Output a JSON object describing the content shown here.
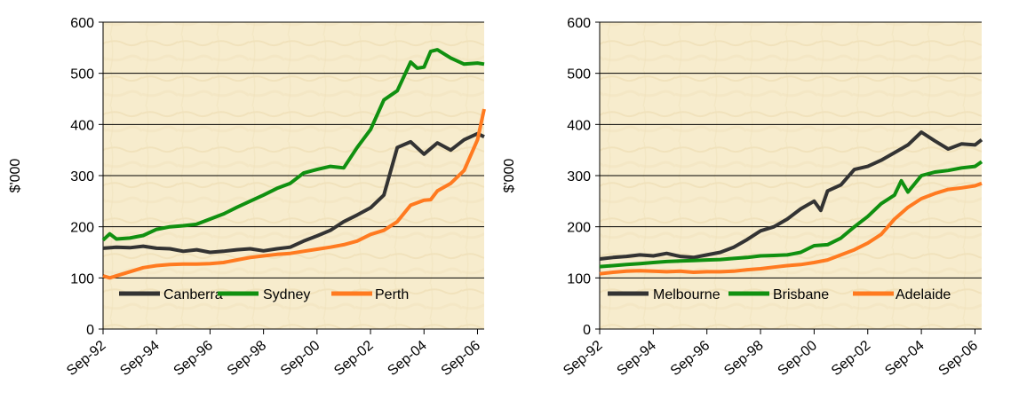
{
  "chart_data": [
    {
      "type": "line",
      "title": "",
      "xlabel": "",
      "ylabel": "$'000",
      "ylim": [
        0,
        600
      ],
      "yticks": [
        0,
        100,
        200,
        300,
        400,
        500,
        600
      ],
      "xlim": [
        "Sep-92",
        "Dec-06"
      ],
      "xtick_labels": [
        "Sep-92",
        "Sep-94",
        "Sep-96",
        "Sep-98",
        "Sep-00",
        "Sep-02",
        "Sep-04",
        "Sep-06"
      ],
      "grid": "horizontal",
      "legend_position": "bottom-inside",
      "series": [
        {
          "name": "Canberra",
          "color": "#333333",
          "points": [
            [
              "Sep-92",
              158
            ],
            [
              "Mar-93",
              160
            ],
            [
              "Sep-93",
              159
            ],
            [
              "Mar-94",
              162
            ],
            [
              "Sep-94",
              158
            ],
            [
              "Mar-95",
              157
            ],
            [
              "Sep-95",
              152
            ],
            [
              "Mar-96",
              155
            ],
            [
              "Sep-96",
              150
            ],
            [
              "Mar-97",
              152
            ],
            [
              "Sep-97",
              155
            ],
            [
              "Mar-98",
              157
            ],
            [
              "Sep-98",
              153
            ],
            [
              "Mar-99",
              157
            ],
            [
              "Sep-99",
              160
            ],
            [
              "Mar-00",
              172
            ],
            [
              "Sep-00",
              182
            ],
            [
              "Mar-01",
              193
            ],
            [
              "Sep-01",
              210
            ],
            [
              "Mar-02",
              223
            ],
            [
              "Sep-02",
              237
            ],
            [
              "Mar-03",
              262
            ],
            [
              "Sep-03",
              355
            ],
            [
              "Mar-04",
              366
            ],
            [
              "Sep-04",
              342
            ],
            [
              "Mar-05",
              364
            ],
            [
              "Sep-05",
              350
            ],
            [
              "Mar-06",
              370
            ],
            [
              "Sep-06",
              382
            ],
            [
              "Dec-06",
              376
            ]
          ]
        },
        {
          "name": "Sydney",
          "color": "#109010",
          "points": [
            [
              "Sep-92",
              174
            ],
            [
              "Dec-92",
              186
            ],
            [
              "Mar-93",
              176
            ],
            [
              "Sep-93",
              178
            ],
            [
              "Mar-94",
              183
            ],
            [
              "Sep-94",
              195
            ],
            [
              "Mar-95",
              200
            ],
            [
              "Sep-95",
              202
            ],
            [
              "Mar-96",
              205
            ],
            [
              "Sep-96",
              215
            ],
            [
              "Mar-97",
              225
            ],
            [
              "Sep-97",
              238
            ],
            [
              "Mar-98",
              250
            ],
            [
              "Sep-98",
              262
            ],
            [
              "Mar-99",
              275
            ],
            [
              "Sep-99",
              285
            ],
            [
              "Mar-00",
              305
            ],
            [
              "Sep-00",
              312
            ],
            [
              "Mar-01",
              318
            ],
            [
              "Sep-01",
              315
            ],
            [
              "Mar-02",
              355
            ],
            [
              "Sep-02",
              390
            ],
            [
              "Mar-03",
              448
            ],
            [
              "Sep-03",
              466
            ],
            [
              "Mar-04",
              522
            ],
            [
              "Jun-04",
              510
            ],
            [
              "Sep-04",
              512
            ],
            [
              "Dec-04",
              543
            ],
            [
              "Mar-05",
              546
            ],
            [
              "Sep-05",
              530
            ],
            [
              "Mar-06",
              518
            ],
            [
              "Sep-06",
              520
            ],
            [
              "Dec-06",
              518
            ]
          ]
        },
        {
          "name": "Perth",
          "color": "#FF7A20",
          "points": [
            [
              "Sep-92",
              104
            ],
            [
              "Dec-92",
              100
            ],
            [
              "Sep-93",
              112
            ],
            [
              "Mar-94",
              120
            ],
            [
              "Sep-94",
              124
            ],
            [
              "Mar-95",
              126
            ],
            [
              "Sep-95",
              127
            ],
            [
              "Mar-96",
              127
            ],
            [
              "Sep-96",
              128
            ],
            [
              "Mar-97",
              130
            ],
            [
              "Sep-97",
              135
            ],
            [
              "Mar-98",
              140
            ],
            [
              "Sep-98",
              143
            ],
            [
              "Mar-99",
              146
            ],
            [
              "Sep-99",
              148
            ],
            [
              "Mar-00",
              152
            ],
            [
              "Sep-00",
              156
            ],
            [
              "Mar-01",
              160
            ],
            [
              "Sep-01",
              165
            ],
            [
              "Mar-02",
              172
            ],
            [
              "Sep-02",
              185
            ],
            [
              "Mar-03",
              193
            ],
            [
              "Sep-03",
              210
            ],
            [
              "Mar-04",
              242
            ],
            [
              "Sep-04",
              252
            ],
            [
              "Dec-04",
              253
            ],
            [
              "Mar-05",
              270
            ],
            [
              "Sep-05",
              285
            ],
            [
              "Mar-06",
              310
            ],
            [
              "Sep-06",
              370
            ],
            [
              "Dec-06",
              430
            ]
          ]
        }
      ]
    },
    {
      "type": "line",
      "title": "",
      "xlabel": "",
      "ylabel": "$'000",
      "ylim": [
        0,
        600
      ],
      "yticks": [
        0,
        100,
        200,
        300,
        400,
        500,
        600
      ],
      "xlim": [
        "Sep-92",
        "Dec-06"
      ],
      "xtick_labels": [
        "Sep-92",
        "Sep-94",
        "Sep-96",
        "Sep-98",
        "Sep-00",
        "Sep-02",
        "Sep-04",
        "Sep-06"
      ],
      "grid": "horizontal",
      "legend_position": "bottom-inside",
      "series": [
        {
          "name": "Melbourne",
          "color": "#333333",
          "points": [
            [
              "Sep-92",
              137
            ],
            [
              "Mar-93",
              140
            ],
            [
              "Sep-93",
              142
            ],
            [
              "Mar-94",
              145
            ],
            [
              "Sep-94",
              143
            ],
            [
              "Mar-95",
              148
            ],
            [
              "Sep-95",
              142
            ],
            [
              "Mar-96",
              140
            ],
            [
              "Sep-96",
              145
            ],
            [
              "Mar-97",
              150
            ],
            [
              "Sep-97",
              160
            ],
            [
              "Mar-98",
              175
            ],
            [
              "Sep-98",
              192
            ],
            [
              "Mar-99",
              200
            ],
            [
              "Sep-99",
              215
            ],
            [
              "Mar-00",
              235
            ],
            [
              "Sep-00",
              250
            ],
            [
              "Dec-00",
              232
            ],
            [
              "Mar-01",
              270
            ],
            [
              "Sep-01",
              282
            ],
            [
              "Mar-02",
              312
            ],
            [
              "Sep-02",
              318
            ],
            [
              "Mar-03",
              330
            ],
            [
              "Sep-03",
              345
            ],
            [
              "Mar-04",
              360
            ],
            [
              "Sep-04",
              385
            ],
            [
              "Mar-05",
              368
            ],
            [
              "Sep-05",
              352
            ],
            [
              "Mar-06",
              362
            ],
            [
              "Sep-06",
              360
            ],
            [
              "Dec-06",
              370
            ]
          ]
        },
        {
          "name": "Brisbane",
          "color": "#109010",
          "points": [
            [
              "Sep-92",
              122
            ],
            [
              "Mar-93",
              124
            ],
            [
              "Sep-93",
              126
            ],
            [
              "Mar-94",
              128
            ],
            [
              "Sep-94",
              130
            ],
            [
              "Mar-95",
              132
            ],
            [
              "Sep-95",
              133
            ],
            [
              "Mar-96",
              134
            ],
            [
              "Sep-96",
              135
            ],
            [
              "Mar-97",
              136
            ],
            [
              "Sep-97",
              138
            ],
            [
              "Mar-98",
              140
            ],
            [
              "Sep-98",
              143
            ],
            [
              "Mar-99",
              144
            ],
            [
              "Sep-99",
              145
            ],
            [
              "Mar-00",
              150
            ],
            [
              "Sep-00",
              163
            ],
            [
              "Mar-01",
              165
            ],
            [
              "Sep-01",
              178
            ],
            [
              "Mar-02",
              200
            ],
            [
              "Sep-02",
              220
            ],
            [
              "Mar-03",
              245
            ],
            [
              "Sep-03",
              262
            ],
            [
              "Dec-03",
              290
            ],
            [
              "Mar-04",
              268
            ],
            [
              "Sep-04",
              300
            ],
            [
              "Mar-05",
              307
            ],
            [
              "Sep-05",
              310
            ],
            [
              "Mar-06",
              315
            ],
            [
              "Sep-06",
              318
            ],
            [
              "Dec-06",
              327
            ]
          ]
        },
        {
          "name": "Adelaide",
          "color": "#FF7A20",
          "points": [
            [
              "Sep-92",
              108
            ],
            [
              "Mar-93",
              111
            ],
            [
              "Sep-93",
              113
            ],
            [
              "Mar-94",
              114
            ],
            [
              "Sep-94",
              113
            ],
            [
              "Mar-95",
              112
            ],
            [
              "Sep-95",
              113
            ],
            [
              "Mar-96",
              111
            ],
            [
              "Sep-96",
              112
            ],
            [
              "Mar-97",
              112
            ],
            [
              "Sep-97",
              113
            ],
            [
              "Mar-98",
              116
            ],
            [
              "Sep-98",
              118
            ],
            [
              "Mar-99",
              121
            ],
            [
              "Sep-99",
              124
            ],
            [
              "Mar-00",
              126
            ],
            [
              "Sep-00",
              130
            ],
            [
              "Mar-01",
              135
            ],
            [
              "Sep-01",
              145
            ],
            [
              "Mar-02",
              155
            ],
            [
              "Sep-02",
              168
            ],
            [
              "Mar-03",
              185
            ],
            [
              "Sep-03",
              215
            ],
            [
              "Mar-04",
              238
            ],
            [
              "Sep-04",
              255
            ],
            [
              "Mar-05",
              265
            ],
            [
              "Sep-05",
              273
            ],
            [
              "Mar-06",
              276
            ],
            [
              "Sep-06",
              280
            ],
            [
              "Dec-06",
              285
            ]
          ]
        }
      ]
    }
  ]
}
